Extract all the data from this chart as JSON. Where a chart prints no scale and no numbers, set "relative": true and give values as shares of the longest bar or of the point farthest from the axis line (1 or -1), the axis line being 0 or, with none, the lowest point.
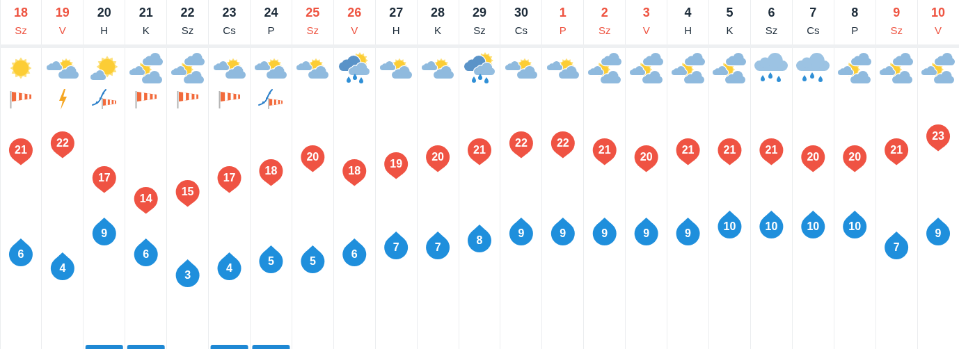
{
  "chart_data": [
    {
      "type": "scatter",
      "categories": [
        "18 Sz",
        "19 V",
        "20 H",
        "21 K",
        "22 Sz",
        "23 Cs",
        "24 P",
        "25 Sz",
        "26 V",
        "27 H",
        "28 K",
        "29 Sz",
        "30 Cs",
        "1 P",
        "2 Sz",
        "3 V",
        "4 H",
        "5 K",
        "6 Sz",
        "7 Cs",
        "8 P",
        "9 Sz",
        "10 V"
      ],
      "series": [
        {
          "color": "#ef5343",
          "values": [
            21,
            22,
            17,
            14,
            15,
            17,
            18,
            20,
            18,
            19,
            20,
            21,
            22,
            22,
            21,
            20,
            21,
            21,
            21,
            20,
            20,
            21,
            23
          ],
          "value_labels": [
            "21",
            "22",
            "17",
            "14",
            "15",
            "17",
            "18",
            "20",
            "18",
            "19",
            "20",
            "21",
            "22",
            "22",
            "21",
            "20",
            "21",
            "21",
            "21",
            "20",
            "20",
            "21",
            "23"
          ]
        },
        {
          "color": "#1f8fdc",
          "values": [
            6,
            4,
            9,
            6,
            3,
            4,
            5,
            5,
            6,
            7,
            7,
            8,
            9,
            9,
            9,
            9,
            9,
            10,
            10,
            10,
            10,
            7,
            9
          ],
          "value_labels": [
            "6",
            "4",
            "9",
            "6",
            "3",
            "4",
            "5",
            "5",
            "6",
            "7",
            "7",
            "8",
            "9",
            "9",
            "9",
            "9",
            "9",
            "10",
            "10",
            "10",
            "10",
            "7",
            "9"
          ]
        }
      ],
      "ylim": [
        -7,
        36
      ],
      "grid": "x",
      "marker": "circle",
      "tick_labels": "x"
    },
    {
      "type": "bar",
      "relative": true,
      "categories": [
        null,
        null,
        null,
        null,
        null,
        null,
        null,
        null,
        null,
        null,
        null,
        null,
        null,
        null,
        null,
        null,
        null,
        null,
        null,
        null,
        null,
        null,
        null
      ],
      "values": [
        null,
        null,
        1,
        1,
        null,
        1,
        1,
        null,
        null,
        null,
        null,
        null,
        null,
        null,
        null,
        null,
        null,
        null,
        null,
        null,
        null,
        null,
        null
      ],
      "color": "#1e88d4",
      "grid": "x",
      "tick_labels": false
    }
  ]
}
